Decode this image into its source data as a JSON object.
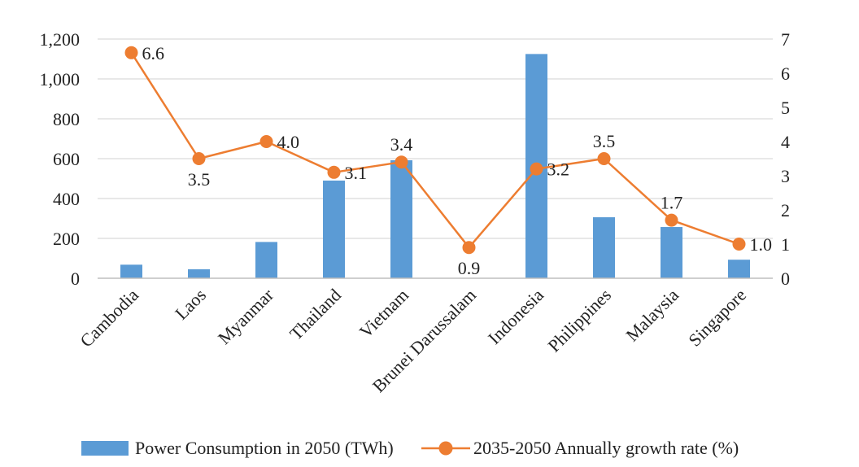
{
  "chart_data": {
    "type": "bar+line",
    "title": "",
    "categories": [
      "Cambodia",
      "Laos",
      "Myanmar",
      "Thailand",
      "Vietnam",
      "Brunei Darussalam",
      "Indonesia",
      "Philippines",
      "Malaysia",
      "Singapore"
    ],
    "series": [
      {
        "name": "Power Consumption in 2050 (TWh)",
        "type": "bar",
        "axis": "left",
        "color": "#5b9bd5",
        "values": [
          68,
          45,
          182,
          490,
          592,
          0,
          1125,
          306,
          257,
          93
        ]
      },
      {
        "name": "2035-2050 Annually growth rate (%)",
        "type": "line",
        "axis": "right",
        "color": "#ed7d31",
        "values": [
          6.6,
          3.5,
          4.0,
          3.1,
          3.4,
          0.9,
          3.2,
          3.5,
          1.7,
          1.0
        ],
        "labels": [
          "6.6",
          "3.5",
          "4.0",
          "3.1",
          "3.4",
          "0.9",
          "3.2",
          "3.5",
          "1.7",
          "1.0"
        ]
      }
    ],
    "y_left": {
      "ylim": [
        0,
        1200
      ],
      "ticks": [
        0,
        200,
        400,
        600,
        800,
        1000,
        1200
      ],
      "tick_labels": [
        "0",
        "200",
        "400",
        "600",
        "800",
        "1,000",
        "1,200"
      ]
    },
    "y_right": {
      "ylim": [
        0,
        7
      ],
      "ticks": [
        0,
        1,
        2,
        3,
        4,
        5,
        6,
        7
      ],
      "tick_labels": [
        "0",
        "1",
        "2",
        "3",
        "4",
        "5",
        "6",
        "7"
      ]
    },
    "grid": true,
    "legend_position": "bottom",
    "label_positions": [
      "right",
      "below",
      "right",
      "right",
      "above",
      "below",
      "right",
      "above",
      "above",
      "right"
    ],
    "gridline_color": "#d9d9d9",
    "axis_color": "#bfbfbf"
  }
}
